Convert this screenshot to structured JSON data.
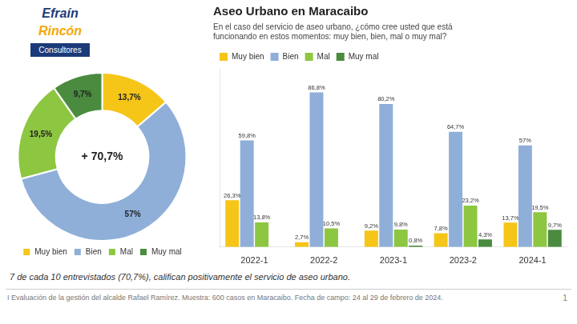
{
  "chart_data": [
    {
      "type": "donut",
      "categories": [
        "Muy bien",
        "Bien",
        "Mal",
        "Muy mal"
      ],
      "values": [
        13.7,
        57.0,
        19.5,
        9.7
      ],
      "value_labels": [
        "13,7%",
        "57%",
        "19,5%",
        "9,7%"
      ],
      "colors": [
        "#F5C518",
        "#8FAFD9",
        "#8DC641",
        "#4A8B3F"
      ],
      "data_labels": true,
      "legend": "bottom",
      "annotations": [
        "+ 70,7%"
      ]
    },
    {
      "type": "bar",
      "title": "Aseo Urbano en Maracaibo",
      "subtitle": "En el caso del servicio de aseo urbano, ¿cómo cree usted que está\nfuncionando en estos momentos: muy bien, bien, mal o muy mal?",
      "categories": [
        "2022-1",
        "2022-2",
        "2023-1",
        "2023-2",
        "2024-1"
      ],
      "series": [
        {
          "name": "Muy bien",
          "color": "#F5C518",
          "values": [
            26.3,
            2.7,
            9.2,
            7.8,
            13.7
          ],
          "value_labels": [
            "26,3%",
            "2,7%",
            "9,2%",
            "7,8%",
            "13,7%"
          ]
        },
        {
          "name": "Bien",
          "color": "#8FAFD9",
          "values": [
            59.8,
            86.8,
            80.2,
            64.7,
            57.0
          ],
          "value_labels": [
            "59,8%",
            "86,8%",
            "80,2%",
            "64,7%",
            "57%"
          ]
        },
        {
          "name": "Mal",
          "color": "#8DC641",
          "values": [
            13.8,
            10.5,
            9.8,
            23.2,
            19.5
          ],
          "value_labels": [
            "13,8%",
            "10,5%",
            "9,8%",
            "23,2%",
            "19,5%"
          ]
        },
        {
          "name": "Muy mal",
          "color": "#4A8B3F",
          "values": [
            0.0,
            0.0,
            0.8,
            4.3,
            9.7
          ],
          "value_labels": [
            null,
            null,
            "0,8%",
            "4,3%",
            "9,7%"
          ]
        }
      ],
      "ylim": [
        0,
        100
      ],
      "tick_labels": "x",
      "grid": false,
      "legend": "top",
      "data_labels": true
    }
  ],
  "annotations": [
    {
      "text": "Efraín",
      "color": "#1B3A7A"
    },
    {
      "text": "Rincón",
      "color": "#F5A800"
    },
    {
      "text": "Consultores",
      "color": "#1B3A7A"
    },
    {
      "text": "7 de cada 10 entrevistados (70,7%), califican positivamente el servicio de aseo urbano."
    },
    {
      "text": "I Evaluación de la gestión del alcalde Rafael Ramírez. Muestra: 600 casos en Maracaibo. Fecha de campo: 24 al 29 de febrero de 2024."
    },
    {
      "text": "1"
    }
  ]
}
